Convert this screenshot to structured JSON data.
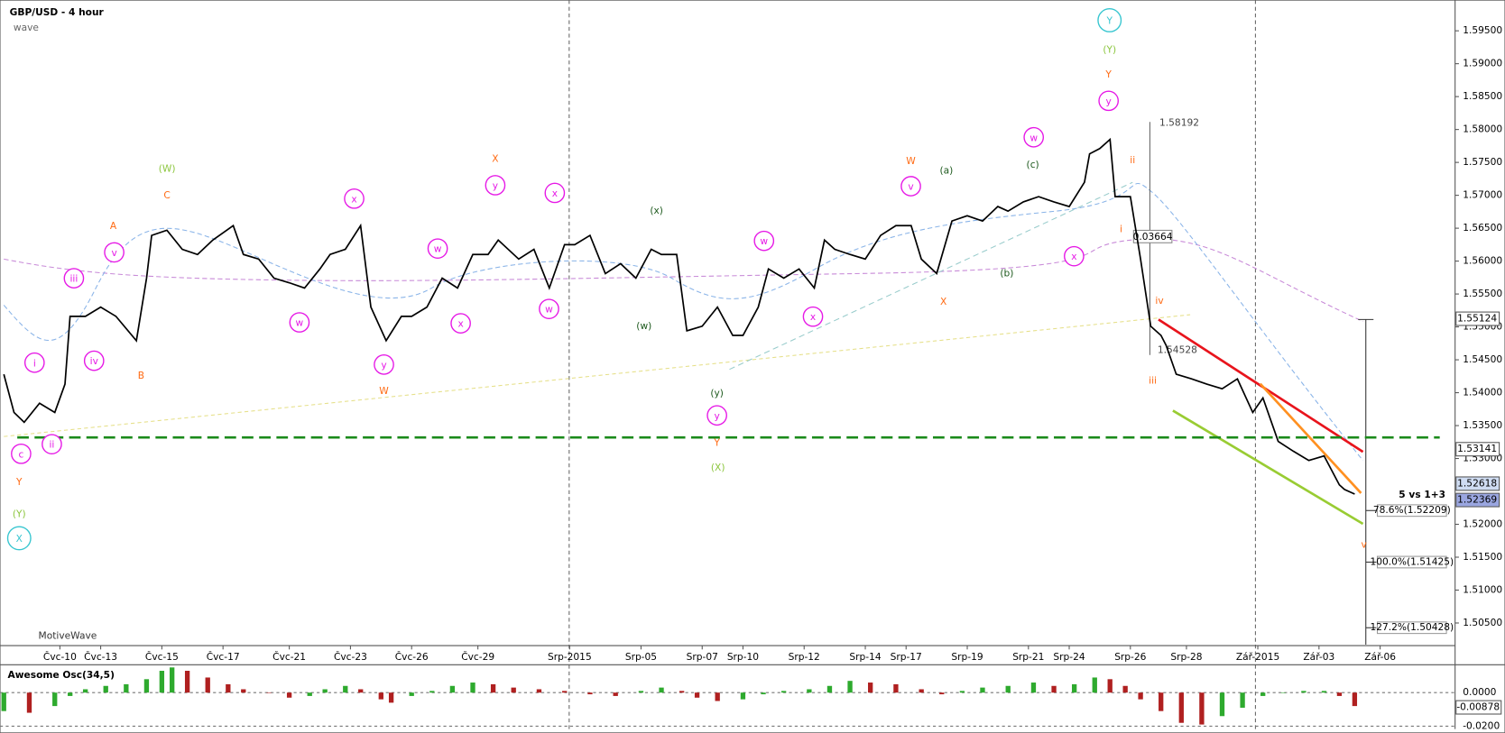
{
  "chart_data": [
    {
      "type": "line",
      "title": "GBP/USD - 4 hour",
      "subtitle": "wave",
      "color": "#000000",
      "x": [
        0,
        2,
        4,
        7,
        10,
        12,
        13,
        16,
        19,
        22,
        26,
        28,
        29,
        32,
        35,
        38,
        41,
        45,
        47,
        50,
        53,
        56,
        59,
        62,
        64,
        67,
        70,
        72,
        75,
        78,
        80,
        83,
        86,
        89,
        92,
        95,
        97,
        101,
        104,
        107,
        110,
        112,
        115,
        118,
        121,
        124,
        127,
        129,
        132,
        134,
        137,
        140,
        143,
        145,
        148,
        150,
        153,
        156,
        159,
        161,
        163,
        166,
        169,
        172,
        175,
        178,
        180,
        183,
        186,
        189,
        192,
        195,
        197,
        200,
        203,
        206,
        209,
        212,
        213,
        215,
        217,
        218,
        221,
        223,
        225,
        227,
        228,
        230,
        233,
        236,
        239,
        242,
        245,
        247,
        250,
        253,
        256,
        259,
        262,
        263,
        265
      ],
      "values": [
        1.5428,
        1.537,
        1.5355,
        1.5384,
        1.537,
        1.5413,
        1.5516,
        1.5516,
        1.553,
        1.5516,
        1.5479,
        1.5574,
        1.5639,
        1.5647,
        1.5618,
        1.561,
        1.5632,
        1.5654,
        1.561,
        1.5603,
        1.5574,
        1.5567,
        1.5559,
        1.5588,
        1.561,
        1.5618,
        1.5654,
        1.553,
        1.5479,
        1.5516,
        1.5516,
        1.553,
        1.5574,
        1.5559,
        1.561,
        1.561,
        1.5632,
        1.5603,
        1.5618,
        1.5559,
        1.5625,
        1.5625,
        1.5639,
        1.5581,
        1.5596,
        1.5574,
        1.5618,
        1.561,
        1.561,
        1.5494,
        1.5501,
        1.553,
        1.5487,
        1.5487,
        1.553,
        1.5588,
        1.5574,
        1.5588,
        1.5559,
        1.5632,
        1.5618,
        1.561,
        1.5603,
        1.5639,
        1.5654,
        1.5654,
        1.5603,
        1.5581,
        1.5661,
        1.5669,
        1.5661,
        1.5683,
        1.5676,
        1.569,
        1.5698,
        1.569,
        1.5683,
        1.572,
        1.5763,
        1.5771,
        1.5785,
        1.5698,
        1.5698,
        1.5603,
        1.5501,
        1.5487,
        1.5472,
        1.5428,
        1.5421,
        1.5413,
        1.5406,
        1.5421,
        1.537,
        1.5392,
        1.5326,
        1.5311,
        1.5297,
        1.5304,
        1.526,
        1.5253,
        1.5246
      ],
      "xlim": [
        -0.75,
        284.7
      ],
      "xticks": [
        {
          "value": 11,
          "label": "Čvc-10"
        },
        {
          "value": 19,
          "label": "Čvc-13"
        },
        {
          "value": 31,
          "label": "Čvc-15"
        },
        {
          "value": 43,
          "label": "Čvc-17"
        },
        {
          "value": 56,
          "label": "Čvc-21"
        },
        {
          "value": 68,
          "label": "Čvc-23"
        },
        {
          "value": 80,
          "label": "Čvc-26"
        },
        {
          "value": 93,
          "label": "Čvc-29"
        },
        {
          "value": 111,
          "label": "Srp-2015"
        },
        {
          "value": 125,
          "label": "Srp-05"
        },
        {
          "value": 137,
          "label": "Srp-07"
        },
        {
          "value": 145,
          "label": "Srp-10"
        },
        {
          "value": 157,
          "label": "Srp-12"
        },
        {
          "value": 169,
          "label": "Srp-14"
        },
        {
          "value": 177,
          "label": "Srp-17"
        },
        {
          "value": 189,
          "label": "Srp-19"
        },
        {
          "value": 201,
          "label": "Srp-21"
        },
        {
          "value": 209,
          "label": "Srp-24"
        },
        {
          "value": 221,
          "label": "Srp-26"
        },
        {
          "value": 232,
          "label": "Srp-28"
        },
        {
          "value": 246,
          "label": "Zář-2015"
        },
        {
          "value": 258,
          "label": "Zář-03"
        },
        {
          "value": 270,
          "label": "Zář-06"
        }
      ],
      "ylim": [
        1.50171,
        1.59908
      ],
      "yticks": [
        {
          "value": 1.505,
          "label": "1.50500"
        },
        {
          "value": 1.51,
          "label": "1.51000"
        },
        {
          "value": 1.515,
          "label": "1.51500"
        },
        {
          "value": 1.52,
          "label": "1.52000"
        },
        {
          "value": 1.53,
          "label": "1.53000"
        },
        {
          "value": 1.535,
          "label": "1.53500"
        },
        {
          "value": 1.54,
          "label": "1.54000"
        },
        {
          "value": 1.545,
          "label": "1.54500"
        },
        {
          "value": 1.55,
          "label": "1.55000"
        },
        {
          "value": 1.555,
          "label": "1.55500"
        },
        {
          "value": 1.56,
          "label": "1.56000"
        },
        {
          "value": 1.565,
          "label": "1.56500"
        },
        {
          "value": 1.57,
          "label": "1.57000"
        },
        {
          "value": 1.575,
          "label": "1.57500"
        },
        {
          "value": 1.58,
          "label": "1.58000"
        },
        {
          "value": 1.585,
          "label": "1.58500"
        },
        {
          "value": 1.59,
          "label": "1.59000"
        },
        {
          "value": 1.595,
          "label": "1.59500"
        }
      ],
      "price_tags": [
        1.55124,
        1.53141,
        1.52618,
        1.52369
      ],
      "support_level": 1.5332,
      "support_color": "#1a8a1a",
      "measure_labels": [
        "1.58192",
        "0.03664",
        "1.54528"
      ],
      "fib_levels": [
        {
          "value": 1.52209,
          "label": "78.6%(1.52209)"
        },
        {
          "value": 1.51425,
          "label": "100.0%(1.51425)"
        },
        {
          "value": 1.50428,
          "label": "127.2%(1.50428)"
        }
      ],
      "note": "5 vs 1+3",
      "brand": "MotiveWave",
      "wave_labels": [
        {
          "text": "c",
          "color": "#e619e6",
          "circle": true
        },
        {
          "text": "ii",
          "color": "#e619e6",
          "circle": true
        },
        {
          "text": "i",
          "color": "#e619e6",
          "circle": true
        },
        {
          "text": "iii",
          "color": "#e619e6",
          "circle": true
        },
        {
          "text": "iv",
          "color": "#e619e6",
          "circle": true
        },
        {
          "text": "v",
          "color": "#e619e6",
          "circle": true
        },
        {
          "text": "A",
          "color": "#ff6a13",
          "circle": false
        },
        {
          "text": "B",
          "color": "#ff6a13",
          "circle": false
        },
        {
          "text": "C",
          "color": "#ff6a13",
          "circle": false
        },
        {
          "text": "(W)",
          "color": "#8cc63e",
          "circle": false
        },
        {
          "text": "w",
          "color": "#e619e6",
          "circle": true
        },
        {
          "text": "x",
          "color": "#e619e6",
          "circle": true
        },
        {
          "text": "y",
          "color": "#e619e6",
          "circle": true
        },
        {
          "text": "W",
          "color": "#ff6a13",
          "circle": false
        },
        {
          "text": "w",
          "color": "#e619e6",
          "circle": true
        },
        {
          "text": "x",
          "color": "#e619e6",
          "circle": true
        },
        {
          "text": "y",
          "color": "#e619e6",
          "circle": true
        },
        {
          "text": "X",
          "color": "#ff6a13",
          "circle": false
        },
        {
          "text": "x",
          "color": "#e619e6",
          "circle": true
        },
        {
          "text": "w",
          "color": "#e619e6",
          "circle": true
        },
        {
          "text": "(x)",
          "color": "#1e5a1e",
          "circle": false
        },
        {
          "text": "(w)",
          "color": "#1e5a1e",
          "circle": false
        },
        {
          "text": "(y)",
          "color": "#1e5a1e",
          "circle": false
        },
        {
          "text": "y",
          "color": "#e619e6",
          "circle": true
        },
        {
          "text": "Y",
          "color": "#ff6a13",
          "circle": false
        },
        {
          "text": "(X)",
          "color": "#8cc63e",
          "circle": false
        },
        {
          "text": "w",
          "color": "#e619e6",
          "circle": true
        },
        {
          "text": "x",
          "color": "#e619e6",
          "circle": true
        },
        {
          "text": "v",
          "color": "#e619e6",
          "circle": true
        },
        {
          "text": "W",
          "color": "#ff6a13",
          "circle": false
        },
        {
          "text": "(a)",
          "color": "#1e5a1e",
          "circle": false
        },
        {
          "text": "X",
          "color": "#ff6a13",
          "circle": false
        },
        {
          "text": "(b)",
          "color": "#1e5a1e",
          "circle": false
        },
        {
          "text": "w",
          "color": "#e619e6",
          "circle": true
        },
        {
          "text": "(c)",
          "color": "#1e5a1e",
          "circle": false
        },
        {
          "text": "x",
          "color": "#e619e6",
          "circle": true
        },
        {
          "text": "y",
          "color": "#e619e6",
          "circle": true
        },
        {
          "text": "Y",
          "color": "#ff6a13",
          "circle": false
        },
        {
          "text": "(Y)",
          "color": "#8cc63e",
          "circle": false
        },
        {
          "text": "Y",
          "color": "#38c6d0",
          "circle": true
        },
        {
          "text": "ii",
          "color": "#ff6a13",
          "circle": false
        },
        {
          "text": "i",
          "color": "#ff6a13",
          "circle": false
        },
        {
          "text": "iv",
          "color": "#ff6a13",
          "circle": false
        },
        {
          "text": "iii",
          "color": "#ff6a13",
          "circle": false
        },
        {
          "text": "v",
          "color": "#ff6a13",
          "circle": false
        },
        {
          "text": "Y",
          "color": "#ff6a13",
          "circle": false
        },
        {
          "text": "(Y)",
          "color": "#8cc63e",
          "circle": false
        },
        {
          "text": "X",
          "color": "#38c6d0",
          "circle": true
        }
      ]
    },
    {
      "type": "bar",
      "title": "Awesome Osc(34,5)",
      "up_color": "#2eaa2e",
      "down_color": "#b02020",
      "x": [
        0,
        5,
        10,
        13,
        16,
        20,
        24,
        28,
        31,
        33,
        36,
        40,
        44,
        47,
        52,
        56,
        60,
        63,
        67,
        70,
        74,
        76,
        80,
        84,
        88,
        92,
        96,
        100,
        105,
        110,
        115,
        120,
        125,
        129,
        133,
        136,
        140,
        145,
        149,
        153,
        158,
        162,
        166,
        170,
        175,
        180,
        184,
        188,
        192,
        197,
        202,
        206,
        210,
        214,
        217,
        220,
        223,
        227,
        231,
        235,
        239,
        243,
        247,
        251,
        255,
        259,
        262,
        265
      ],
      "values": [
        -0.011,
        -0.012,
        -0.008,
        -0.002,
        0.002,
        0.004,
        0.005,
        0.008,
        0.013,
        0.015,
        0.013,
        0.009,
        0.005,
        0.002,
        0.0,
        -0.003,
        -0.002,
        0.002,
        0.004,
        0.002,
        -0.004,
        -0.006,
        -0.002,
        0.001,
        0.004,
        0.006,
        0.005,
        0.003,
        0.002,
        0.001,
        -0.001,
        -0.002,
        0.001,
        0.003,
        0.001,
        -0.003,
        -0.005,
        -0.004,
        -0.001,
        0.001,
        0.002,
        0.004,
        0.007,
        0.006,
        0.005,
        0.002,
        -0.001,
        0.001,
        0.003,
        0.004,
        0.006,
        0.004,
        0.005,
        0.009,
        0.008,
        0.004,
        -0.004,
        -0.011,
        -0.018,
        -0.019,
        -0.014,
        -0.009,
        -0.002,
        0.0,
        0.001,
        0.001,
        -0.002,
        -0.008
      ],
      "xlim": [
        -0.75,
        284.7
      ],
      "ylim": [
        -0.0217,
        0.0143
      ],
      "yticks": [
        {
          "value": 0,
          "label": "0.0000"
        },
        {
          "value": -0.02,
          "label": "-0.0200"
        }
      ],
      "price_tags": [
        -0.00878
      ]
    }
  ]
}
